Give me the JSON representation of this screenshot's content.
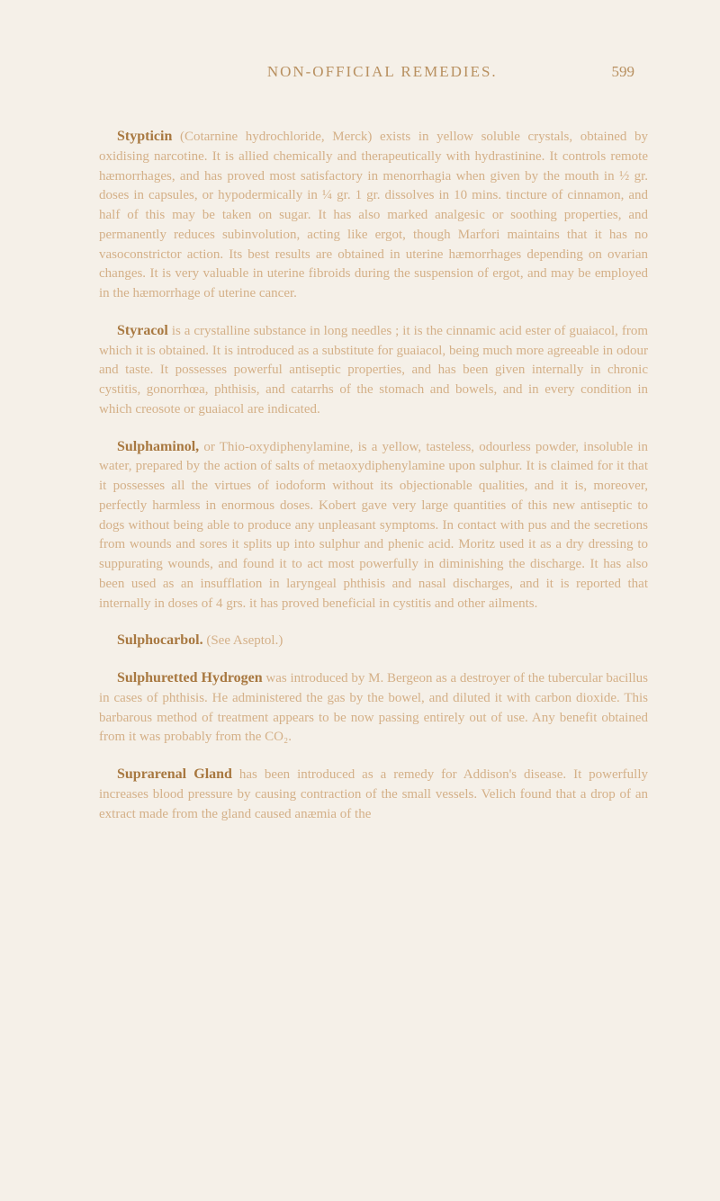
{
  "header": {
    "title": "NON-OFFICIAL REMEDIES.",
    "pageNumber": "599"
  },
  "entries": [
    {
      "title": "Stypticin",
      "body": " (Cotarnine hydrochloride, Merck) exists in yellow soluble crystals, obtained by oxidising narcotine. It is allied chemically and therapeutically with hydrastinine. It controls remote hæmorrhages, and has proved most satisfactory in menorrhagia when given by the mouth in ½ gr. doses in capsules, or hypodermically in ¼ gr. 1 gr. dissolves in 10 mins. tincture of cinnamon, and half of this may be taken on sugar. It has also marked analgesic or soothing properties, and permanently reduces subinvolution, acting like ergot, though Marfori maintains that it has no vasoconstrictor action. Its best results are obtained in uterine hæmorrhages depending on ovarian changes. It is very valuable in uterine fibroids during the suspension of ergot, and may be employed in the hæmorrhage of uterine cancer."
    },
    {
      "title": "Styracol",
      "body": " is a crystalline substance in long needles ; it is the cinnamic acid ester of guaiacol, from which it is obtained. It is introduced as a substitute for guaiacol, being much more agreeable in odour and taste. It possesses powerful antiseptic properties, and has been given internally in chronic cystitis, gonorrhœa, phthisis, and catarrhs of the stomach and bowels, and in every condition in which creosote or guaiacol are indicated."
    },
    {
      "title": "Sulphaminol,",
      "body": " or Thio-oxydiphenylamine, is a yellow, tasteless, odourless powder, insoluble in water, prepared by the action of salts of metaoxydiphenylamine upon sulphur. It is claimed for it that it possesses all the virtues of iodoform without its objectionable qualities, and it is, moreover, perfectly harmless in enormous doses. Kobert gave very large quantities of this new antiseptic to dogs without being able to produce any unpleasant symptoms. In contact with pus and the secretions from wounds and sores it splits up into sulphur and phenic acid. Moritz used it as a dry dressing to suppurating wounds, and found it to act most powerfully in diminishing the discharge. It has also been used as an insufflation in laryngeal phthisis and nasal discharges, and it is reported that internally in doses of 4 grs. it has proved beneficial in cystitis and other ailments."
    },
    {
      "title": "Sulphocarbol.",
      "body": " (See Aseptol.)"
    },
    {
      "title": "Sulphuretted Hydrogen",
      "body": " was introduced by M. Bergeon as a destroyer of the tubercular bacillus in cases of phthisis. He administered the gas by the bowel, and diluted it with carbon dioxide. This barbarous method of treatment appears to be now passing entirely out of use. Any benefit obtained from it was probably from the CO₂."
    },
    {
      "title": "Suprarenal Gland",
      "body": " has been introduced as a remedy for Addison's disease. It powerfully increases blood pressure by causing contraction of the small vessels. Velich found that a drop of an extract made from the gland caused anæmia of the"
    }
  ]
}
